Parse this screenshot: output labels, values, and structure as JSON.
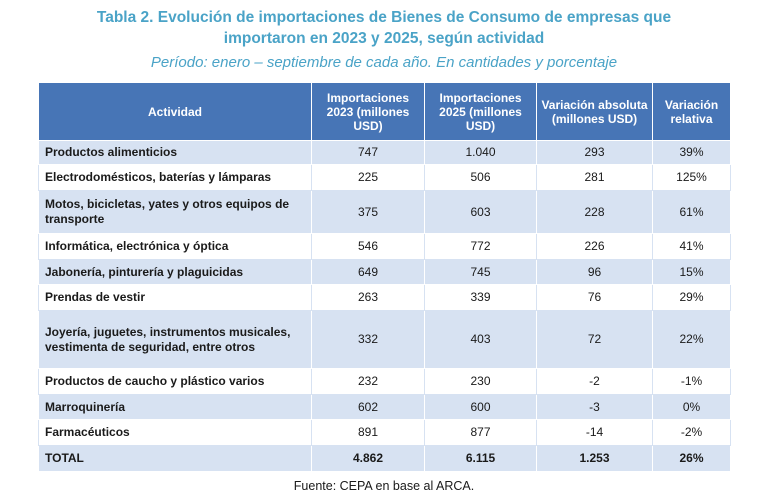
{
  "title_line1": "Tabla 2. Evolución de importaciones de Bienes de Consumo de empresas que",
  "title_line2": "importaron en 2023 y 2025, según actividad",
  "subtitle": "Período: enero – septiembre de cada año. En cantidades y porcentaje",
  "headers": {
    "actividad": "Actividad",
    "imp2023": "Importaciones 2023 (millones USD)",
    "imp2025": "Importaciones 2025 (millones USD)",
    "var_abs": "Variación absoluta (millones USD)",
    "var_rel": "Variación relativa"
  },
  "rows": [
    {
      "actividad": "Productos alimenticios",
      "imp2023": "747",
      "imp2025": "1.040",
      "var_abs": "293",
      "var_rel": "39%"
    },
    {
      "actividad": "Electrodomésticos, baterías y lámparas",
      "imp2023": "225",
      "imp2025": "506",
      "var_abs": "281",
      "var_rel": "125%"
    },
    {
      "actividad": "Motos, bicicletas, yates y otros equipos de transporte",
      "imp2023": "375",
      "imp2025": "603",
      "var_abs": "228",
      "var_rel": "61%"
    },
    {
      "actividad": "Informática, electrónica y óptica",
      "imp2023": "546",
      "imp2025": "772",
      "var_abs": "226",
      "var_rel": "41%"
    },
    {
      "actividad": "Jabonería, pinturería y plaguicidas",
      "imp2023": "649",
      "imp2025": "745",
      "var_abs": "96",
      "var_rel": "15%"
    },
    {
      "actividad": "Prendas de vestir",
      "imp2023": "263",
      "imp2025": "339",
      "var_abs": "76",
      "var_rel": "29%"
    },
    {
      "actividad": "Joyería, juguetes, instrumentos musicales, vestimenta de seguridad, entre otros",
      "imp2023": "332",
      "imp2025": "403",
      "var_abs": "72",
      "var_rel": "22%"
    },
    {
      "actividad": "Productos de caucho y plástico varios",
      "imp2023": "232",
      "imp2025": "230",
      "var_abs": "-2",
      "var_rel": "-1%"
    },
    {
      "actividad": "Marroquinería",
      "imp2023": "602",
      "imp2025": "600",
      "var_abs": "-3",
      "var_rel": "0%"
    },
    {
      "actividad": "Farmacéuticos",
      "imp2023": "891",
      "imp2025": "877",
      "var_abs": "-14",
      "var_rel": "-2%"
    }
  ],
  "total": {
    "actividad": "TOTAL",
    "imp2023": "4.862",
    "imp2025": "6.115",
    "var_abs": "1.253",
    "var_rel": "26%"
  },
  "source": "Fuente: CEPA en base al ARCA."
}
